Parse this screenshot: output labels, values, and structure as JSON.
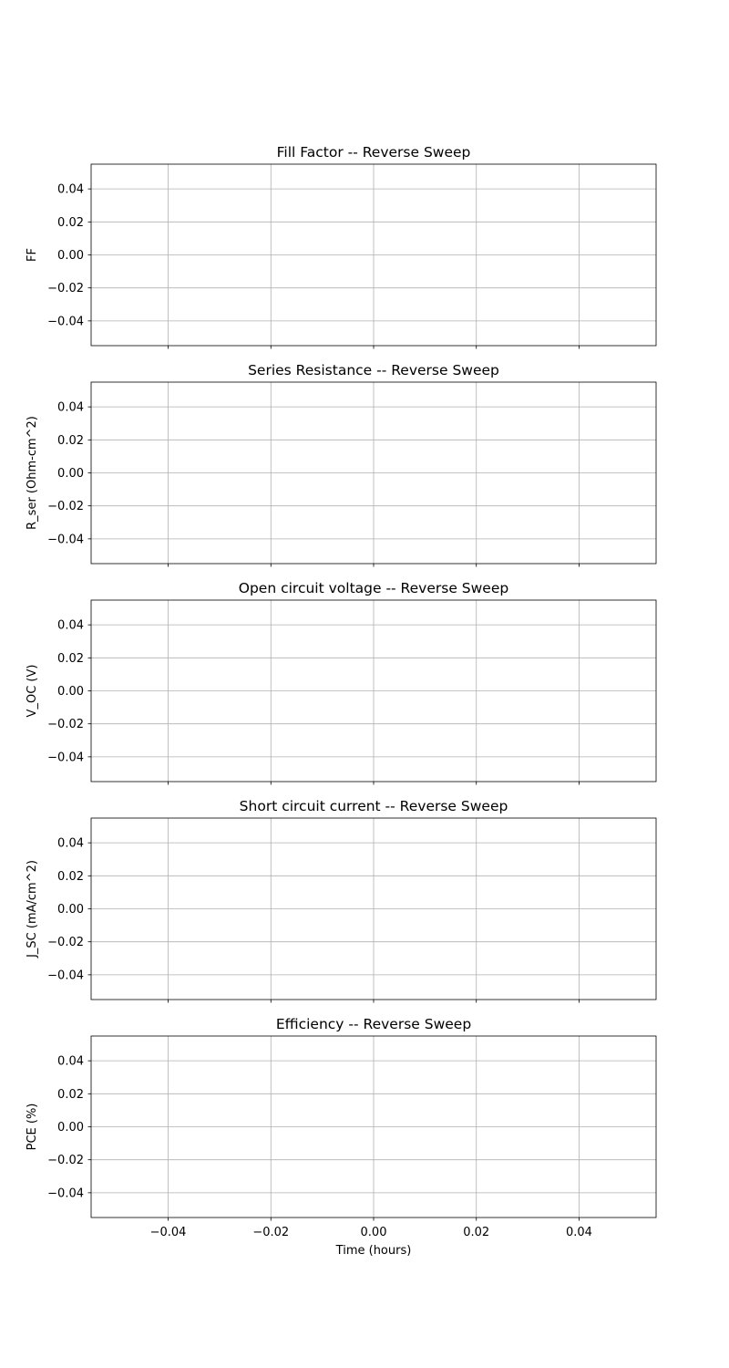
{
  "chart_data": [
    {
      "type": "line",
      "title": "Fill Factor -- Reverse Sweep",
      "xlabel": "",
      "ylabel": "FF",
      "series": [],
      "xlim": [
        -0.055,
        0.055
      ],
      "ylim": [
        -0.055,
        0.055
      ],
      "xticks": [
        -0.04,
        -0.02,
        0.0,
        0.02,
        0.04
      ],
      "yticks": [
        -0.04,
        -0.02,
        0.0,
        0.02,
        0.04
      ],
      "x_tick_labels_visible": false,
      "grid": true
    },
    {
      "type": "line",
      "title": "Series Resistance -- Reverse Sweep",
      "xlabel": "",
      "ylabel": "R_ser (Ohm-cm^2)",
      "series": [],
      "xlim": [
        -0.055,
        0.055
      ],
      "ylim": [
        -0.055,
        0.055
      ],
      "xticks": [
        -0.04,
        -0.02,
        0.0,
        0.02,
        0.04
      ],
      "yticks": [
        -0.04,
        -0.02,
        0.0,
        0.02,
        0.04
      ],
      "x_tick_labels_visible": false,
      "grid": true
    },
    {
      "type": "line",
      "title": "Open circuit voltage -- Reverse Sweep",
      "xlabel": "",
      "ylabel": "V_OC (V)",
      "series": [],
      "xlim": [
        -0.055,
        0.055
      ],
      "ylim": [
        -0.055,
        0.055
      ],
      "xticks": [
        -0.04,
        -0.02,
        0.0,
        0.02,
        0.04
      ],
      "yticks": [
        -0.04,
        -0.02,
        0.0,
        0.02,
        0.04
      ],
      "x_tick_labels_visible": false,
      "grid": true
    },
    {
      "type": "line",
      "title": "Short circuit current -- Reverse Sweep",
      "xlabel": "",
      "ylabel": "J_SC (mA/cm^2)",
      "series": [],
      "xlim": [
        -0.055,
        0.055
      ],
      "ylim": [
        -0.055,
        0.055
      ],
      "xticks": [
        -0.04,
        -0.02,
        0.0,
        0.02,
        0.04
      ],
      "yticks": [
        -0.04,
        -0.02,
        0.0,
        0.02,
        0.04
      ],
      "x_tick_labels_visible": false,
      "grid": true
    },
    {
      "type": "line",
      "title": "Efficiency -- Reverse Sweep",
      "xlabel": "Time (hours)",
      "ylabel": "PCE (%)",
      "series": [],
      "xlim": [
        -0.055,
        0.055
      ],
      "ylim": [
        -0.055,
        0.055
      ],
      "xticks": [
        -0.04,
        -0.02,
        0.0,
        0.02,
        0.04
      ],
      "yticks": [
        -0.04,
        -0.02,
        0.0,
        0.02,
        0.04
      ],
      "x_tick_labels_visible": true,
      "grid": true
    }
  ]
}
